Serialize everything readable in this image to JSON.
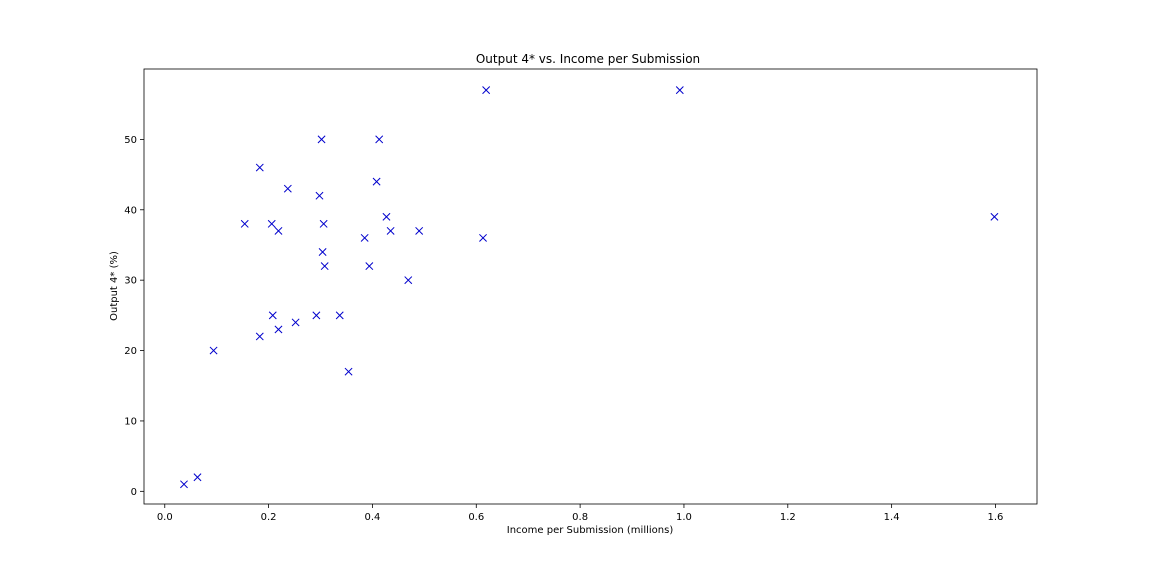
{
  "chart_data": {
    "type": "scatter",
    "title": "Output 4* vs. Income per Submission",
    "xlabel": "Income per Submission (millions)",
    "ylabel": "Output 4* (%)",
    "xlim": [
      -0.04,
      1.68
    ],
    "ylim": [
      -1.8,
      60.0
    ],
    "xticks": [
      0.0,
      0.2,
      0.4,
      0.6,
      0.8,
      1.0,
      1.2,
      1.4,
      1.6
    ],
    "xtick_labels": [
      "0.0",
      "0.2",
      "0.4",
      "0.6",
      "0.8",
      "1.0",
      "1.2",
      "1.4",
      "1.6"
    ],
    "yticks": [
      0,
      10,
      20,
      30,
      40,
      50
    ],
    "ytick_labels": [
      "0",
      "10",
      "20",
      "30",
      "40",
      "50"
    ],
    "grid": false,
    "marker": "x",
    "color": "#0000cc",
    "points": [
      {
        "x": 0.037,
        "y": 1
      },
      {
        "x": 0.063,
        "y": 2
      },
      {
        "x": 0.094,
        "y": 20
      },
      {
        "x": 0.154,
        "y": 38
      },
      {
        "x": 0.183,
        "y": 46
      },
      {
        "x": 0.183,
        "y": 22
      },
      {
        "x": 0.206,
        "y": 38
      },
      {
        "x": 0.208,
        "y": 25
      },
      {
        "x": 0.219,
        "y": 37
      },
      {
        "x": 0.219,
        "y": 23
      },
      {
        "x": 0.237,
        "y": 43
      },
      {
        "x": 0.252,
        "y": 24
      },
      {
        "x": 0.292,
        "y": 25
      },
      {
        "x": 0.298,
        "y": 42
      },
      {
        "x": 0.302,
        "y": 50
      },
      {
        "x": 0.306,
        "y": 38
      },
      {
        "x": 0.304,
        "y": 34
      },
      {
        "x": 0.308,
        "y": 32
      },
      {
        "x": 0.337,
        "y": 25
      },
      {
        "x": 0.354,
        "y": 17
      },
      {
        "x": 0.385,
        "y": 36
      },
      {
        "x": 0.394,
        "y": 32
      },
      {
        "x": 0.408,
        "y": 44
      },
      {
        "x": 0.413,
        "y": 50
      },
      {
        "x": 0.427,
        "y": 39
      },
      {
        "x": 0.435,
        "y": 37
      },
      {
        "x": 0.469,
        "y": 30
      },
      {
        "x": 0.49,
        "y": 37
      },
      {
        "x": 0.613,
        "y": 36
      },
      {
        "x": 0.619,
        "y": 57
      },
      {
        "x": 0.992,
        "y": 57
      },
      {
        "x": 1.598,
        "y": 39
      }
    ]
  }
}
